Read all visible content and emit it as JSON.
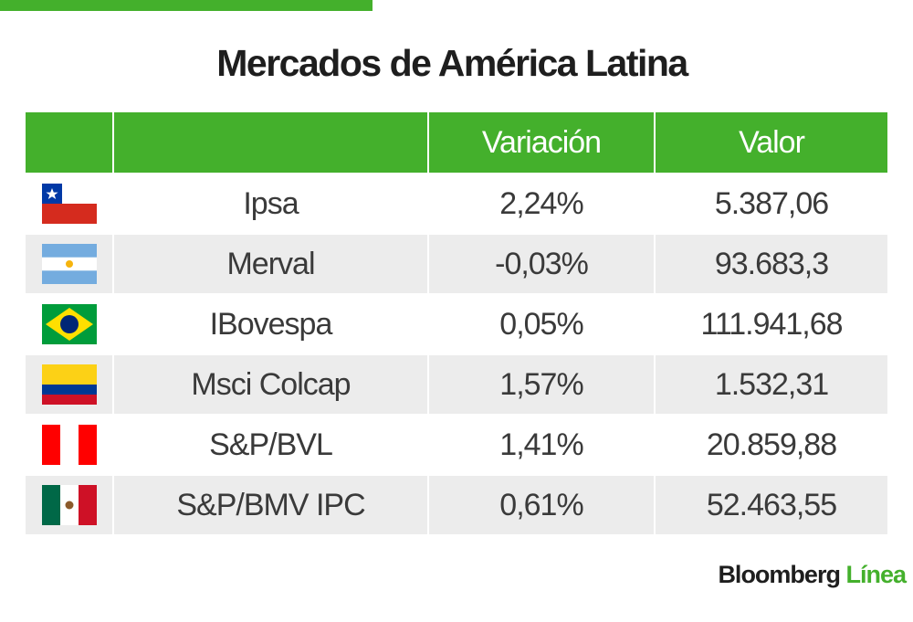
{
  "title": "Mercados de América Latina",
  "headers": [
    "",
    "",
    "Variación",
    "Valor"
  ],
  "rows": [
    {
      "flag": "chile-flag",
      "index": "Ipsa",
      "variation": "2,24%",
      "value": "5.387,06"
    },
    {
      "flag": "argentina-flag",
      "index": "Merval",
      "variation": "-0,03%",
      "value": "93.683,3"
    },
    {
      "flag": "brazil-flag",
      "index": "IBovespa",
      "variation": "0,05%",
      "value": "111.941,68"
    },
    {
      "flag": "colombia-flag",
      "index": "Msci Colcap",
      "variation": "1,57%",
      "value": "1.532,31"
    },
    {
      "flag": "peru-flag",
      "index": "S&P/BVL",
      "variation": "1,41%",
      "value": "20.859,88"
    },
    {
      "flag": "mexico-flag",
      "index": "S&P/BMV IPC",
      "variation": "0,61%",
      "value": "52.463,55"
    }
  ],
  "logo": {
    "brand": "Bloomberg",
    "sub": "Línea"
  },
  "colors": {
    "accent": "#44b02c",
    "alt_row": "#ececec"
  }
}
